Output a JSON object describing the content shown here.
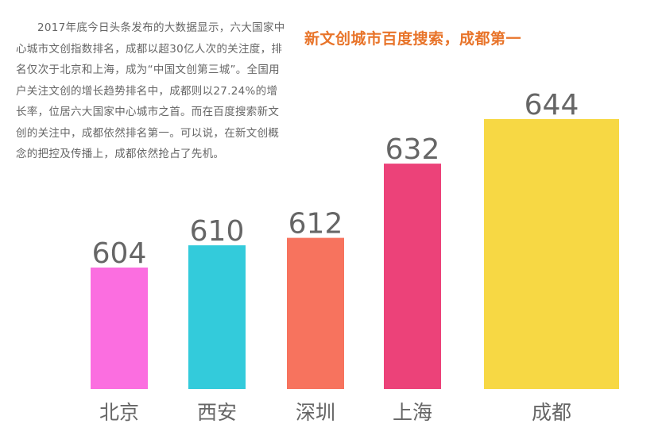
{
  "intro_text": "2017年底今日头条发布的大数据显示，六大国家中心城市文创指数排名，成都以超30亿人次的关注度，排名仅次于北京和上海，成为“中国文创第三城”。全国用户关注文创的增长趋势排名中，成都则以27.24%的增长率，位居六大国家中心城市之首。而在百度搜索新文创的关注中，成都依然排名第一。可以说，在新文创概念的把控及传播上，成都依然抢占了先机。",
  "chart_data": {
    "type": "bar",
    "title": "新文创城市百度搜索，成都第一",
    "title_color": "#e8742a",
    "categories": [
      "北京",
      "西安",
      "深圳",
      "上海",
      "成都"
    ],
    "values": [
      604,
      610,
      612,
      632,
      644
    ],
    "colors": [
      "#fb6ee0",
      "#33cbdb",
      "#f7735e",
      "#ec4279",
      "#f7d844"
    ],
    "label_color": "#666666"
  }
}
